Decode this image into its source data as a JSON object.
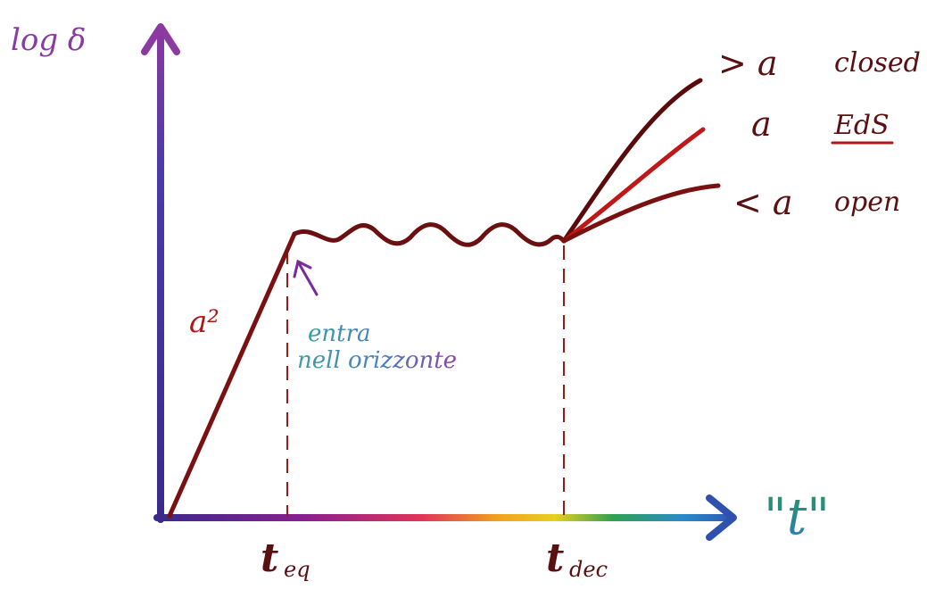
{
  "axes": {
    "y_label": "log δ",
    "x_label": "\"t\"",
    "x_ticks": [
      {
        "main": "t",
        "sub": "eq"
      },
      {
        "main": "t",
        "sub": "dec"
      }
    ]
  },
  "annotations": {
    "growth": "a²",
    "horizon_line1": "entra",
    "horizon_line2": "nell orizzonte"
  },
  "branches": [
    {
      "symbol": "> a",
      "name": "closed"
    },
    {
      "symbol": "a",
      "name": "EdS"
    },
    {
      "symbol": "< a",
      "name": "open"
    }
  ],
  "colors": {
    "curve": "#b01818",
    "curve_dark": "#4a0a0a",
    "axis_y": "#4b3aa0",
    "dashed": "#9a1a1a"
  }
}
